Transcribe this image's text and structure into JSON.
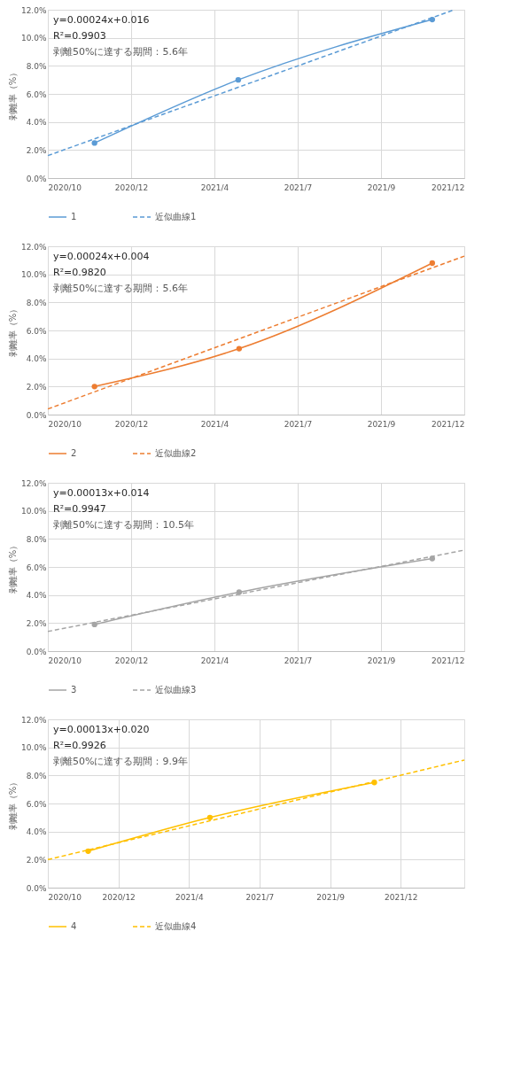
{
  "chart_data": [
    {
      "type": "line",
      "ylabel": "剥離率（%）",
      "xlim": [
        "2020-10-01",
        "2021-12-30"
      ],
      "xticks": [
        {
          "value": "2020-10-01",
          "label": "2020/10"
        },
        {
          "value": "2020-12-31",
          "label": "2020/12"
        },
        {
          "value": "2021-04-01",
          "label": "2021/4"
        },
        {
          "value": "2021-07-01",
          "label": "2021/7"
        },
        {
          "value": "2021-09-30",
          "label": "2021/9"
        },
        {
          "value": "2021-12-30",
          "label": "2021/12"
        }
      ],
      "ylim": [
        0,
        12
      ],
      "yticks": [
        {
          "value": 0,
          "label": "0.0%"
        },
        {
          "value": 2,
          "label": "2.0%"
        },
        {
          "value": 4,
          "label": "4.0%"
        },
        {
          "value": 6,
          "label": "6.0%"
        },
        {
          "value": 8,
          "label": "8.0%"
        },
        {
          "value": 10,
          "label": "10.0%"
        },
        {
          "value": 12,
          "label": "12.0%"
        }
      ],
      "grid": true,
      "legend": "bottom",
      "marker": "circle",
      "annotations": [
        "y=0.00024x+0.016",
        "R²=0.9903",
        "剥離50%に達する期間：5.6年"
      ],
      "series": [
        {
          "name": "1",
          "color": "#5b9bd5",
          "x": [
            "2020-11-21",
            "2021-04-27",
            "2021-11-25"
          ],
          "values": [
            2.5,
            7.0,
            11.3
          ]
        },
        {
          "name": "近似曲線1",
          "color": "#5b9bd5",
          "x": [
            "2020-10-01",
            "2021-12-19"
          ],
          "values": [
            1.6,
            12.0
          ],
          "marker": "none",
          "line_style": "dashed"
        }
      ]
    },
    {
      "type": "line",
      "ylabel": "剥離率（%）",
      "xlim": [
        "2020-10-01",
        "2021-12-30"
      ],
      "xticks": [
        {
          "value": "2020-10-01",
          "label": "2020/10"
        },
        {
          "value": "2020-12-31",
          "label": "2020/12"
        },
        {
          "value": "2021-04-01",
          "label": "2021/4"
        },
        {
          "value": "2021-07-01",
          "label": "2021/7"
        },
        {
          "value": "2021-09-30",
          "label": "2021/9"
        },
        {
          "value": "2021-12-30",
          "label": "2021/12"
        }
      ],
      "ylim": [
        0,
        12
      ],
      "yticks": [
        {
          "value": 0,
          "label": "0.0%"
        },
        {
          "value": 2,
          "label": "2.0%"
        },
        {
          "value": 4,
          "label": "4.0%"
        },
        {
          "value": 6,
          "label": "6.0%"
        },
        {
          "value": 8,
          "label": "8.0%"
        },
        {
          "value": 10,
          "label": "10.0%"
        },
        {
          "value": 12,
          "label": "12.0%"
        }
      ],
      "grid": true,
      "legend": "bottom",
      "marker": "circle",
      "annotations": [
        "y=0.00024x+0.004",
        "R²=0.9820",
        "剥離50%に達する期間：5.6年"
      ],
      "series": [
        {
          "name": "2",
          "color": "#ed7d31",
          "x": [
            "2020-11-21",
            "2021-04-28",
            "2021-11-25"
          ],
          "values": [
            2.0,
            4.7,
            10.8
          ]
        },
        {
          "name": "近似曲線2",
          "color": "#ed7d31",
          "x": [
            "2020-10-01",
            "2021-12-30"
          ],
          "values": [
            0.4,
            11.3
          ],
          "marker": "none",
          "line_style": "dashed"
        }
      ]
    },
    {
      "type": "line",
      "ylabel": "剥離率（%）",
      "xlim": [
        "2020-10-01",
        "2021-12-30"
      ],
      "xticks": [
        {
          "value": "2020-10-01",
          "label": "2020/10"
        },
        {
          "value": "2020-12-31",
          "label": "2020/12"
        },
        {
          "value": "2021-04-01",
          "label": "2021/4"
        },
        {
          "value": "2021-07-01",
          "label": "2021/7"
        },
        {
          "value": "2021-09-30",
          "label": "2021/9"
        },
        {
          "value": "2021-12-30",
          "label": "2021/12"
        }
      ],
      "ylim": [
        0,
        12
      ],
      "yticks": [
        {
          "value": 0,
          "label": "0.0%"
        },
        {
          "value": 2,
          "label": "2.0%"
        },
        {
          "value": 4,
          "label": "4.0%"
        },
        {
          "value": 6,
          "label": "6.0%"
        },
        {
          "value": 8,
          "label": "8.0%"
        },
        {
          "value": 10,
          "label": "10.0%"
        },
        {
          "value": 12,
          "label": "12.0%"
        }
      ],
      "grid": true,
      "legend": "bottom",
      "marker": "circle",
      "annotations": [
        "y=0.00013x+0.014",
        "R²=0.9947",
        "剥離50%に達する期間：10.5年"
      ],
      "series": [
        {
          "name": "3",
          "color": "#a5a5a5",
          "x": [
            "2020-11-21",
            "2021-04-28",
            "2021-11-25"
          ],
          "values": [
            1.9,
            4.2,
            6.6
          ]
        },
        {
          "name": "近似曲線3",
          "color": "#a5a5a5",
          "x": [
            "2020-10-01",
            "2021-12-30"
          ],
          "values": [
            1.4,
            7.2
          ],
          "marker": "none",
          "line_style": "dashed"
        }
      ]
    },
    {
      "type": "line",
      "ylabel": "剥離率（%）",
      "xlim": [
        "2020-10-01",
        "2022-03-22"
      ],
      "xticks": [
        {
          "value": "2020-10-01",
          "label": "2020/10"
        },
        {
          "value": "2020-12-31",
          "label": "2020/12"
        },
        {
          "value": "2021-04-01",
          "label": "2021/4"
        },
        {
          "value": "2021-07-01",
          "label": "2021/7"
        },
        {
          "value": "2021-09-30",
          "label": "2021/9"
        },
        {
          "value": "2021-12-30",
          "label": "2021/12"
        }
      ],
      "ylim": [
        0,
        12
      ],
      "yticks": [
        {
          "value": 0,
          "label": "0.0%"
        },
        {
          "value": 2,
          "label": "2.0%"
        },
        {
          "value": 4,
          "label": "4.0%"
        },
        {
          "value": 6,
          "label": "6.0%"
        },
        {
          "value": 8,
          "label": "8.0%"
        },
        {
          "value": 10,
          "label": "10.0%"
        },
        {
          "value": 12,
          "label": "12.0%"
        }
      ],
      "grid": true,
      "legend": "bottom",
      "marker": "circle",
      "annotations": [
        "y=0.00013x+0.020",
        "R²=0.9926",
        "剥離50%に達する期間：9.9年"
      ],
      "series": [
        {
          "name": "4",
          "color": "#ffc000",
          "x": [
            "2020-11-22",
            "2021-04-28",
            "2021-11-26"
          ],
          "values": [
            2.6,
            5.0,
            7.5
          ]
        },
        {
          "name": "近似曲線4",
          "color": "#ffc000",
          "x": [
            "2020-10-01",
            "2022-03-22"
          ],
          "values": [
            2.0,
            9.1
          ],
          "marker": "none",
          "line_style": "dashed"
        }
      ]
    }
  ]
}
